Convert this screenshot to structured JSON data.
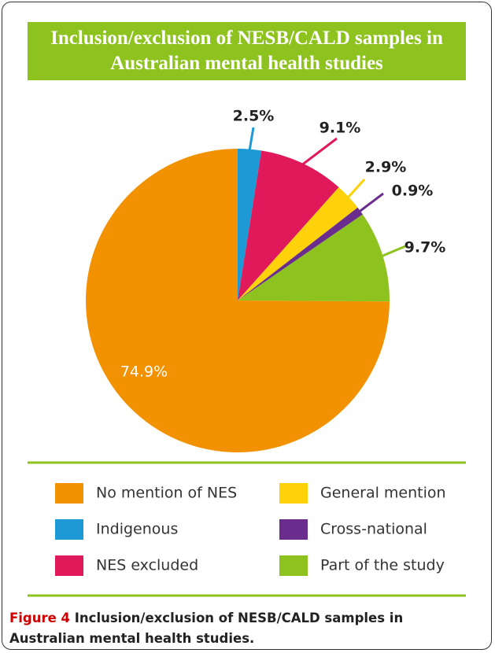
{
  "chart_data": {
    "type": "pie",
    "title": "Inclusion/exclusion of NESB/CALD samples in Australian mental health studies",
    "categories": [
      "Indigenous",
      "NES excluded",
      "General mention",
      "Cross-national",
      "Part of the study",
      "No mention of NES"
    ],
    "values": [
      2.5,
      9.1,
      2.9,
      0.9,
      9.7,
      74.9
    ],
    "value_labels": [
      "2.5%",
      "9.1%",
      "2.9%",
      "0.9%",
      "9.7%",
      "74.9%"
    ],
    "colors": [
      "#1d9ad6",
      "#e0195a",
      "#fdd20a",
      "#6a2d8d",
      "#8dc21f",
      "#f39200"
    ]
  },
  "caption": {
    "label": "Figure 4",
    "text": "Inclusion/exclusion of NESB/CALD samples in Australian mental health studies."
  }
}
